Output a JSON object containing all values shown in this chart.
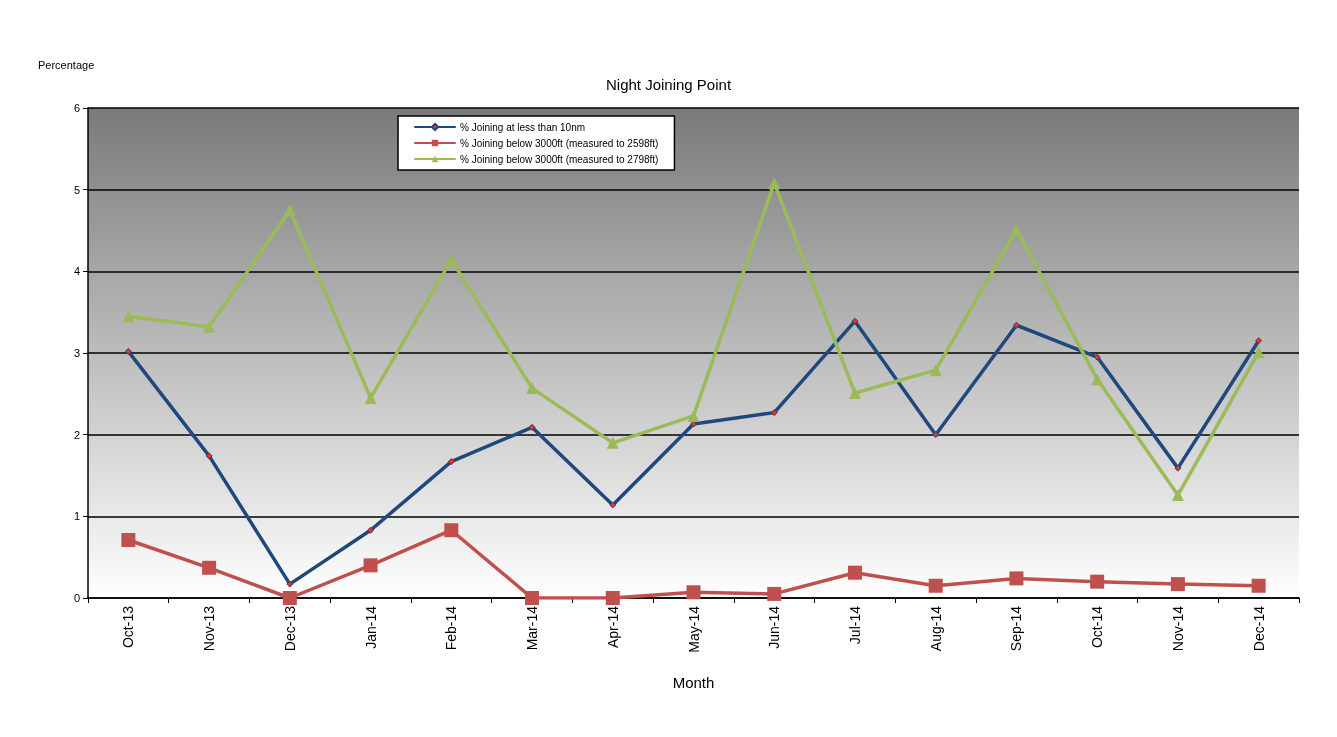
{
  "chart_data": {
    "type": "line",
    "title": "Night Joining Point",
    "xlabel": "Month",
    "ylabel": "Percentage",
    "categories": [
      "Oct-13",
      "Nov-13",
      "Dec-13",
      "Jan-14",
      "Feb-14",
      "Mar-14",
      "Apr-14",
      "May-14",
      "Jun-14",
      "Jul-14",
      "Aug-14",
      "Sep-14",
      "Oct-14",
      "Nov-14",
      "Dec-14"
    ],
    "series": [
      {
        "name": "% Joining at less than 10nm",
        "color": "#1f497d",
        "marker": "diamond",
        "values": [
          3.02,
          1.74,
          0.17,
          0.83,
          1.67,
          2.09,
          1.14,
          2.13,
          2.27,
          3.39,
          2.0,
          3.34,
          2.95,
          1.59,
          3.15
        ]
      },
      {
        "name": "% Joining below 3000ft (measured to 2598ft)",
        "color": "#c0504d",
        "marker": "square",
        "values": [
          0.71,
          0.37,
          0,
          0.4,
          0.83,
          0,
          0,
          0.07,
          0.05,
          0.31,
          0.15,
          0.24,
          0.2,
          0.17,
          0.15
        ]
      },
      {
        "name": "% Joining below 3000ft (measured to 2798ft)",
        "color": "#9bbb59",
        "marker": "triangle",
        "values": [
          3.45,
          3.32,
          4.75,
          2.45,
          4.14,
          2.57,
          1.9,
          2.23,
          5.08,
          2.51,
          2.79,
          4.51,
          2.68,
          1.26,
          3.01
        ]
      }
    ],
    "ylim": [
      0,
      6
    ],
    "yticks": [
      0,
      1,
      2,
      3,
      4,
      5,
      6
    ],
    "grid": "y",
    "legend": "top left",
    "line_style": "solid"
  }
}
